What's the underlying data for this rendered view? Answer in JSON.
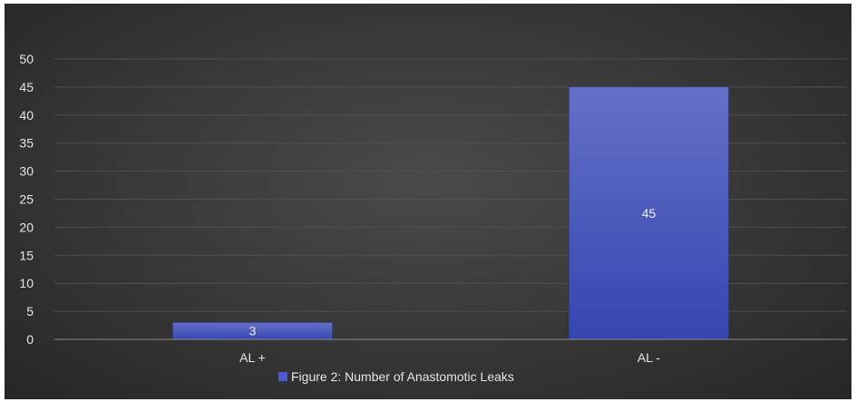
{
  "chart_data": {
    "type": "bar",
    "categories": [
      "AL +",
      "AL -"
    ],
    "series": [
      {
        "name": "Figure 2: Number of Anastomotic Leaks",
        "values": [
          3,
          45
        ]
      }
    ],
    "data_labels": [
      "3",
      "45"
    ],
    "y_ticks": [
      0,
      5,
      10,
      15,
      20,
      25,
      30,
      35,
      40,
      45,
      50
    ],
    "ylim": [
      0,
      50
    ],
    "grid": true,
    "legend_position": "bottom",
    "colors": {
      "bar_top": "#6470c8",
      "bar_bottom": "#3546b0",
      "legend_swatch": "#4a5bd0",
      "gridline": "#505050",
      "axis": "#8a8a8a"
    }
  }
}
